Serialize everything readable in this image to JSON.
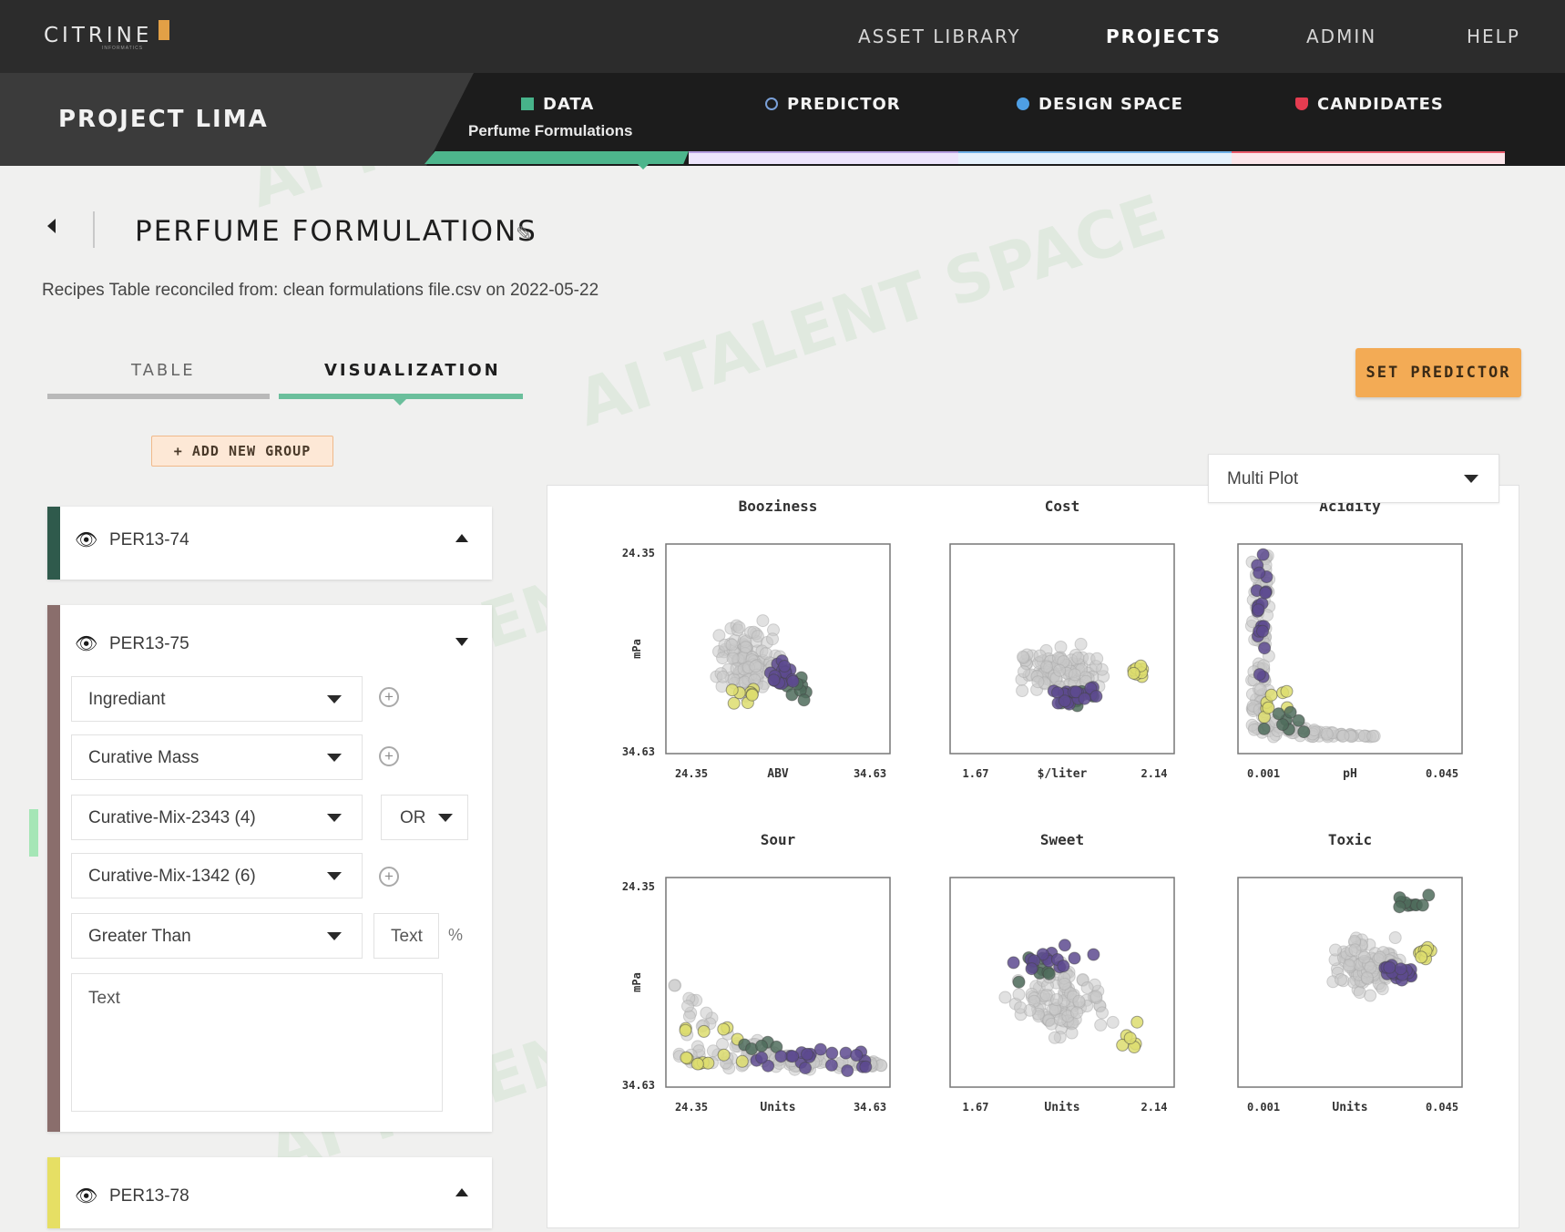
{
  "nav": {
    "logo": "CITRINE",
    "logo_sub": "INFORMATICS",
    "items": [
      "ASSET LIBRARY",
      "PROJECTS",
      "ADMIN",
      "HELP"
    ],
    "active": "PROJECTS"
  },
  "project": {
    "title": "PROJECT LIMA",
    "steps": [
      {
        "label": "DATA",
        "sub": "Perfume Formulations",
        "icon": "table-icon",
        "color": "#47b38a"
      },
      {
        "label": "PREDICTOR",
        "icon": "cycle-icon",
        "color": "#b49ddf"
      },
      {
        "label": "DESIGN SPACE",
        "icon": "lightbulb-icon",
        "color": "#6fb0e6"
      },
      {
        "label": "CANDIDATES",
        "icon": "trophy-icon",
        "color": "#e95a6b"
      }
    ]
  },
  "page": {
    "title": "PERFUME FORMULATIONS",
    "subtitle": "Recipes Table reconciled from: clean formulations file.csv on 2022-05-22"
  },
  "tabs": [
    {
      "label": "TABLE"
    },
    {
      "label": "VISUALIZATION",
      "active": true
    }
  ],
  "buttons": {
    "set_predictor": "SET PREDICTOR",
    "add_group": "+ ADD NEW GROUP"
  },
  "groups": [
    {
      "name": "PER13-74",
      "color": "#2f5a4c",
      "expanded": false
    },
    {
      "name": "PER13-75",
      "color": "#8a6e6c",
      "expanded": true,
      "fields": {
        "field1": "Ingrediant",
        "field2": "Curative Mass",
        "field3": "Curative-Mix-2343 (4)",
        "operator": "OR",
        "field4": "Curative-Mix-1342 (6)",
        "comparison": "Greater Than",
        "value_placeholder": "Text",
        "unit": "%",
        "notes_placeholder": "Text"
      }
    },
    {
      "name": "PER13-78",
      "color": "#e6df64",
      "expanded": false
    }
  ],
  "plot_selector": "Multi Plot",
  "colors": {
    "purple": "#5d4a8f",
    "green": "#4f6c5c",
    "yellow": "#dddd6e",
    "gray": "#c8c8c8",
    "accent": "#f3ab55"
  },
  "chart_data": [
    {
      "type": "scatter",
      "title": "Booziness",
      "xlabel": "ABV",
      "ylabel": "mPa",
      "xticks": [
        "24.35",
        "34.63"
      ],
      "yticks": [
        "24.35",
        "34.63"
      ],
      "pattern": "cluster-center"
    },
    {
      "type": "scatter",
      "title": "Cost",
      "xlabel": "$/liter",
      "ylabel": "",
      "xticks": [
        "1.67",
        "2.14"
      ],
      "yticks": [],
      "pattern": "cluster-mid"
    },
    {
      "type": "scatter",
      "title": "Acidity",
      "xlabel": "pH",
      "ylabel": "",
      "xticks": [
        "0.001",
        "0.045"
      ],
      "yticks": [],
      "pattern": "l-shape"
    },
    {
      "type": "scatter",
      "title": "Sour",
      "xlabel": "Units",
      "ylabel": "mPa",
      "xticks": [
        "24.35",
        "34.63"
      ],
      "yticks": [
        "24.35",
        "34.63"
      ],
      "pattern": "decay"
    },
    {
      "type": "scatter",
      "title": "Sweet",
      "xlabel": "Units",
      "ylabel": "",
      "xticks": [
        "1.67",
        "2.14"
      ],
      "yticks": [],
      "pattern": "spread"
    },
    {
      "type": "scatter",
      "title": "Toxic",
      "xlabel": "Units",
      "ylabel": "",
      "xticks": [
        "0.001",
        "0.045"
      ],
      "yticks": [],
      "pattern": "upper-right"
    }
  ]
}
